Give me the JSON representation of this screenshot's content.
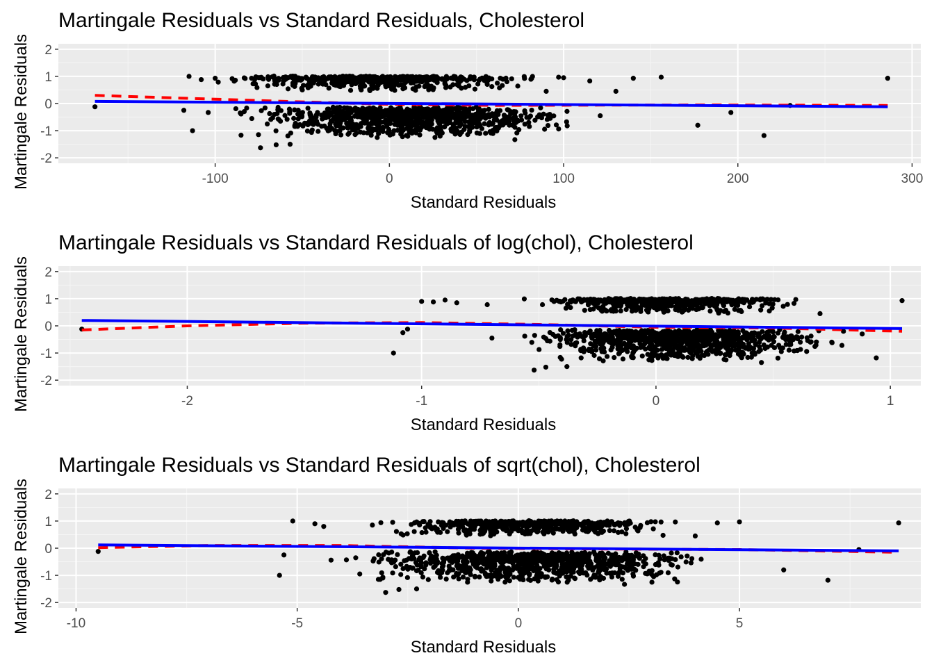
{
  "chart_data": [
    {
      "type": "scatter",
      "title": "Martingale Residuals vs Standard Residuals, Cholesterol",
      "xlabel": "Standard Residuals",
      "ylabel": "Martingale Residuals",
      "xlim": [
        -190,
        305
      ],
      "ylim": [
        -2.2,
        2.2
      ],
      "xticks": [
        -100,
        0,
        100,
        200,
        300
      ],
      "xtick_labels": [
        "-100",
        "0",
        "100",
        "200",
        "300"
      ],
      "yticks": [
        -2,
        -1,
        0,
        1,
        2
      ],
      "ytick_labels": [
        "-2",
        "-1",
        "0",
        "1",
        "2"
      ],
      "x_range": [
        -169,
        286
      ],
      "bands": {
        "upper": {
          "x": [
            -110,
            100
          ],
          "y": 0.95
        },
        "lower": {
          "x": [
            -100,
            120
          ],
          "y": -0.3
        }
      },
      "points": [
        [
          -169,
          -0.12
        ],
        [
          286,
          0.93
        ],
        [
          -113,
          -1.0
        ],
        [
          -74,
          -1.63
        ],
        [
          -65,
          -1.52
        ],
        [
          -57,
          -1.5
        ],
        [
          215,
          -1.18
        ],
        [
          156,
          0.97
        ],
        [
          140,
          0.93
        ],
        [
          177,
          -0.8
        ],
        [
          196,
          -0.33
        ],
        [
          121,
          -0.45
        ],
        [
          130,
          0.45
        ],
        [
          230,
          -0.07
        ],
        [
          -115,
          1.0
        ],
        [
          -108,
          0.88
        ],
        [
          -118,
          -0.25
        ],
        [
          -104,
          -0.33
        ],
        [
          -7,
          -1.25
        ],
        [
          72,
          -1.33
        ],
        [
          -50,
          0.5
        ],
        [
          90,
          0.45
        ],
        [
          115,
          0.83
        ],
        [
          -100,
          0.93
        ],
        [
          100,
          0.95
        ]
      ],
      "series": [
        {
          "kind": "dashed",
          "color": "#ff0000",
          "x": [
            -169,
            -120,
            -60,
            0,
            60,
            120,
            180,
            240,
            286
          ],
          "y": [
            0.3,
            0.2,
            0.08,
            -0.03,
            -0.07,
            -0.06,
            -0.05,
            -0.06,
            -0.07
          ]
        },
        {
          "kind": "solid",
          "color": "#0000ff",
          "x": [
            -169,
            286
          ],
          "y": [
            0.08,
            -0.12
          ]
        }
      ]
    },
    {
      "type": "scatter",
      "title": "Martingale Residuals vs Standard Residuals of log(chol), Cholesterol",
      "xlabel": "Standard Residuals",
      "ylabel": "Martingale Residuals",
      "xlim": [
        -2.55,
        1.13
      ],
      "ylim": [
        -2.2,
        2.2
      ],
      "xticks": [
        -2,
        -1,
        0,
        1
      ],
      "xtick_labels": [
        "-2",
        "-1",
        "0",
        "1"
      ],
      "yticks": [
        -2,
        -1,
        0,
        1,
        2
      ],
      "ytick_labels": [
        "-2",
        "-1",
        "0",
        "1",
        "2"
      ],
      "x_range": [
        -2.45,
        1.05
      ],
      "bands": {
        "upper": {
          "x": [
            -0.6,
            0.7
          ],
          "y": 0.95
        },
        "lower": {
          "x": [
            -0.65,
            0.85
          ],
          "y": -0.3
        }
      },
      "points": [
        [
          -2.45,
          -0.12
        ],
        [
          1.05,
          0.93
        ],
        [
          -1.12,
          -1.0
        ],
        [
          -0.52,
          -1.63
        ],
        [
          -0.47,
          -1.52
        ],
        [
          -0.38,
          -1.5
        ],
        [
          0.94,
          -1.18
        ],
        [
          0.45,
          -1.35
        ],
        [
          -0.03,
          -1.25
        ],
        [
          -1.0,
          0.9
        ],
        [
          -0.9,
          0.95
        ],
        [
          -0.85,
          0.85
        ],
        [
          -0.72,
          0.78
        ],
        [
          -0.7,
          -0.45
        ],
        [
          -1.06,
          -0.12
        ],
        [
          -0.95,
          0.88
        ],
        [
          -1.08,
          -0.25
        ],
        [
          0.88,
          -0.3
        ],
        [
          0.75,
          -0.6
        ],
        [
          0.7,
          0.45
        ],
        [
          0.8,
          -0.2
        ]
      ],
      "series": [
        {
          "kind": "dashed",
          "color": "#ff0000",
          "x": [
            -2.45,
            -2.0,
            -1.5,
            -1.0,
            -0.5,
            0.0,
            0.5,
            1.05
          ],
          "y": [
            -0.15,
            0.0,
            0.1,
            0.12,
            0.05,
            -0.05,
            -0.08,
            -0.2
          ]
        },
        {
          "kind": "solid",
          "color": "#0000ff",
          "x": [
            -2.45,
            1.05
          ],
          "y": [
            0.2,
            -0.1
          ]
        }
      ]
    },
    {
      "type": "scatter",
      "title": "Martingale Residuals vs Standard Residuals of sqrt(chol), Cholesterol",
      "xlabel": "Standard Residuals",
      "ylabel": "Martingale Residuals",
      "xlim": [
        -10.4,
        9.1
      ],
      "ylim": [
        -2.2,
        2.2
      ],
      "xticks": [
        -10,
        -5,
        0,
        5
      ],
      "xtick_labels": [
        "-10",
        "-5",
        "0",
        "5"
      ],
      "yticks": [
        -2,
        -1,
        0,
        1,
        2
      ],
      "ytick_labels": [
        "-2",
        "-1",
        "0",
        "1",
        "2"
      ],
      "x_range": [
        -9.5,
        8.6
      ],
      "bands": {
        "upper": {
          "x": [
            -3.5,
            4.0
          ],
          "y": 0.95
        },
        "lower": {
          "x": [
            -4.5,
            5.0
          ],
          "y": -0.3
        }
      },
      "points": [
        [
          -9.5,
          -0.12
        ],
        [
          8.6,
          0.93
        ],
        [
          -5.4,
          -1.0
        ],
        [
          -3.0,
          -1.63
        ],
        [
          -2.7,
          -1.52
        ],
        [
          -2.3,
          -1.5
        ],
        [
          7.0,
          -1.18
        ],
        [
          5.0,
          0.97
        ],
        [
          4.5,
          0.93
        ],
        [
          6.0,
          -0.8
        ],
        [
          7.7,
          -0.05
        ],
        [
          3.4,
          -0.45
        ],
        [
          4.0,
          0.45
        ],
        [
          -0.3,
          -1.25
        ],
        [
          2.4,
          -1.33
        ],
        [
          -5.1,
          1.0
        ],
        [
          -5.3,
          -0.25
        ],
        [
          -4.4,
          0.8
        ],
        [
          -4.6,
          0.9
        ],
        [
          -3.3,
          0.85
        ],
        [
          -2.1,
          0.75
        ]
      ],
      "series": [
        {
          "kind": "dashed",
          "color": "#ff0000",
          "x": [
            -9.5,
            -7,
            -4,
            -1,
            2,
            5,
            8.6
          ],
          "y": [
            0.02,
            0.1,
            0.1,
            0.0,
            -0.03,
            -0.05,
            -0.15
          ]
        },
        {
          "kind": "solid",
          "color": "#0000ff",
          "x": [
            -9.5,
            8.6
          ],
          "y": [
            0.12,
            -0.1
          ]
        }
      ]
    }
  ]
}
